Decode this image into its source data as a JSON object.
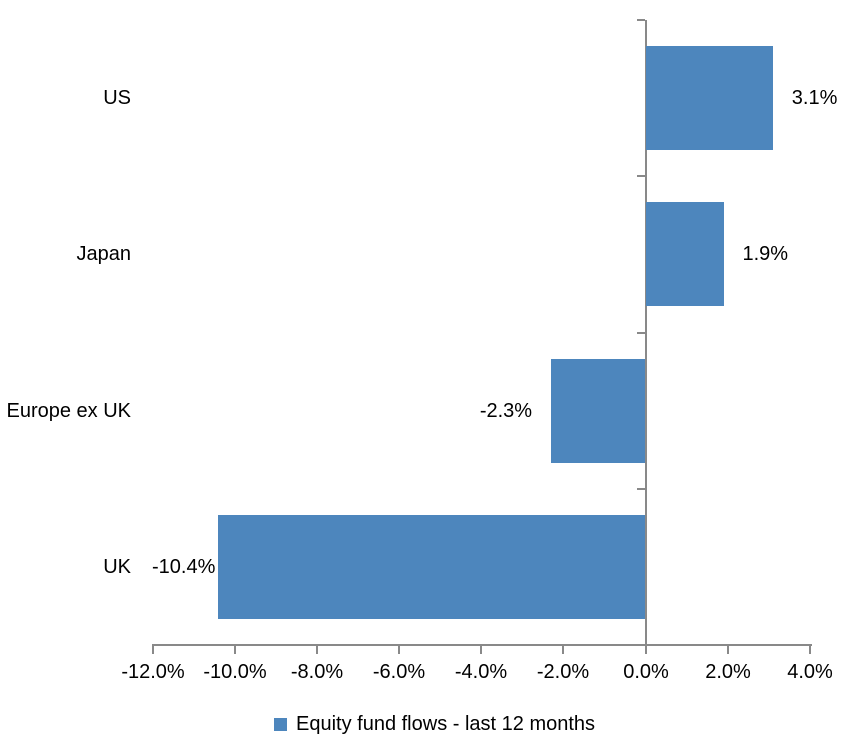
{
  "chart_data": {
    "type": "bar",
    "orientation": "horizontal",
    "title": "",
    "categories": [
      "US",
      "Japan",
      "Europe ex UK",
      "UK"
    ],
    "series": [
      {
        "name": "Equity fund flows - last 12 months",
        "values": [
          3.1,
          1.9,
          -2.3,
          -10.4
        ],
        "data_labels": [
          "3.1%",
          "1.9%",
          "-2.3%",
          "-10.4%"
        ]
      }
    ],
    "x_axis": {
      "min": -12,
      "max": 4,
      "tick_step": 2,
      "tick_values": [
        -12,
        -10,
        -8,
        -6,
        -4,
        -2,
        0,
        2,
        4
      ],
      "tick_labels": [
        "-12.0%",
        "-10.0%",
        "-8.0%",
        "-6.0%",
        "-4.0%",
        "-2.0%",
        "0.0%",
        "2.0%",
        "4.0%"
      ],
      "unit": "%"
    },
    "grid": false,
    "legend": {
      "position": "bottom",
      "items": [
        {
          "label": "Equity fund flows - last 12 months",
          "swatch_icon": "legend-swatch-icon"
        }
      ]
    },
    "colors": {
      "bar": "#4D86BD",
      "axis": "#898989",
      "text": "#000000",
      "background": "#FFFFFF"
    }
  }
}
